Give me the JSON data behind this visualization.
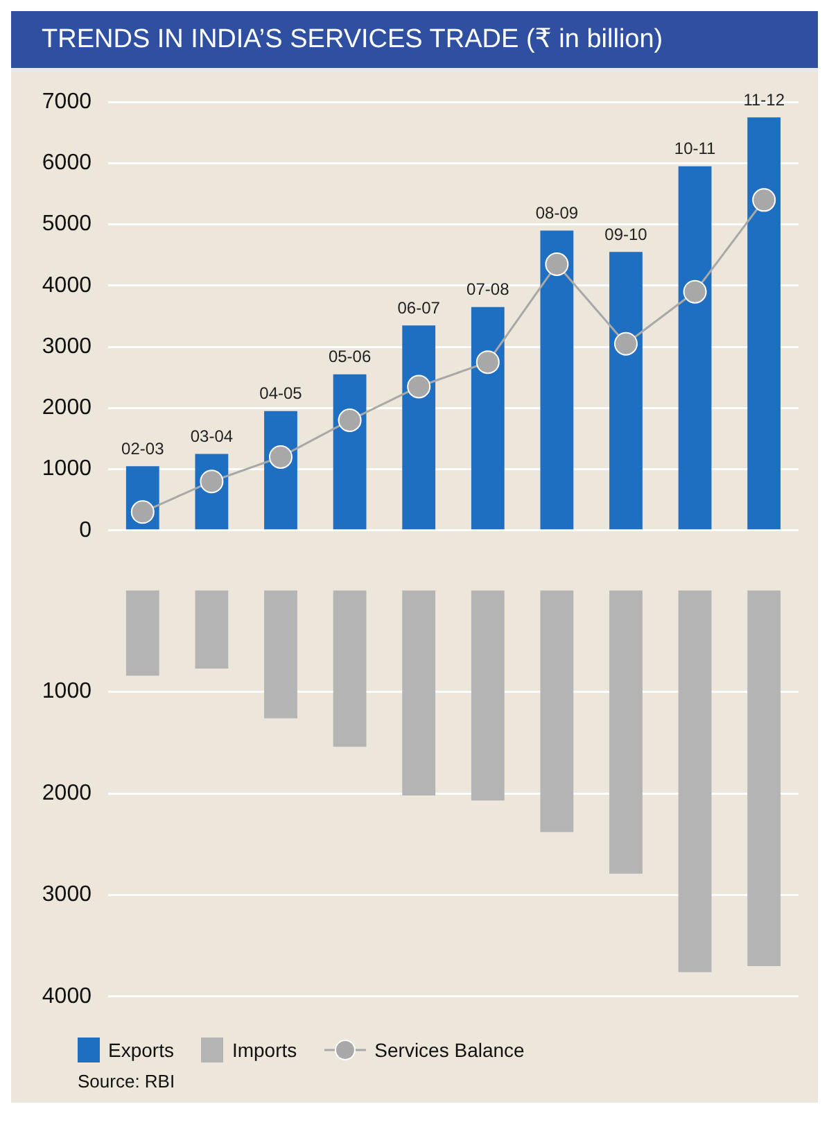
{
  "chart_data": [
    {
      "type": "bar",
      "title": "TRENDS IN INDIA’S SERVICES TRADE (₹ in billion)",
      "categories": [
        "02-03",
        "03-04",
        "04-05",
        "05-06",
        "06-07",
        "07-08",
        "08-09",
        "09-10",
        "10-11",
        "11-12"
      ],
      "series": [
        {
          "name": "Exports",
          "color": "#1e6fc1",
          "values": [
            1050,
            1250,
            1950,
            2550,
            3350,
            3650,
            4900,
            4550,
            5950,
            6750
          ]
        },
        {
          "name": "Services Balance",
          "type": "line",
          "color": "#a8a8a8",
          "values": [
            300,
            800,
            1200,
            1800,
            2350,
            2750,
            4350,
            3050,
            3900,
            5400
          ]
        }
      ],
      "ylim": [
        0,
        7000
      ],
      "yticks": [
        0,
        1000,
        2000,
        3000,
        4000,
        5000,
        6000,
        7000
      ],
      "grid": "y",
      "marker": "circle",
      "legend": "bottom"
    },
    {
      "type": "bar",
      "categories": [
        null,
        null,
        null,
        null,
        null,
        null,
        null,
        null,
        null,
        null
      ],
      "series": [
        {
          "name": "Imports",
          "color": "#b4b4b4",
          "values": [
            840,
            770,
            1260,
            1540,
            2020,
            2070,
            2380,
            2790,
            3760,
            3700
          ]
        }
      ],
      "ylim": [
        4000,
        0
      ],
      "yticks": [
        1000,
        2000,
        3000,
        4000
      ],
      "grid": "y",
      "tick_labels": "y",
      "legend": "bottom",
      "annotations": [
        "Source: RBI"
      ]
    }
  ]
}
